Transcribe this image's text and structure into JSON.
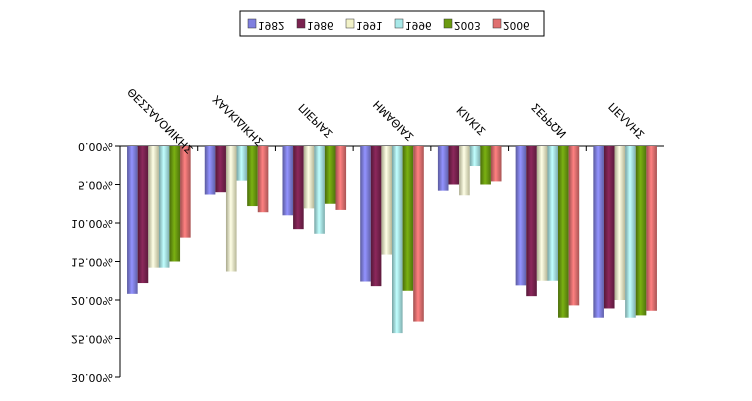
{
  "chart_data": {
    "type": "bar",
    "title": "",
    "xlabel": "",
    "ylabel": "",
    "categories": [
      "ΘΕΣΣΑΛΟΝΙΚΗΣ",
      "ΧΑΛΚΙΔΙΚΗΣ",
      "ΠΙΕΡΙΑΣ",
      "ΗΜΑΘΙΑΣ",
      "ΚΙΛΚΙΣ",
      "ΣΕΡΡΩΝ",
      "ΠΕΛΛΗΣ"
    ],
    "series": [
      {
        "name": "1982",
        "color": "#8080e0",
        "values": [
          19.2,
          6.3,
          9.0,
          17.6,
          5.8,
          18.1,
          22.3
        ]
      },
      {
        "name": "1986",
        "color": "#7a2350",
        "values": [
          17.8,
          6.0,
          10.8,
          18.2,
          5.0,
          19.5,
          21.1
        ]
      },
      {
        "name": "1991",
        "color": "#f2f2c8",
        "values": [
          15.8,
          16.3,
          8.1,
          14.1,
          6.4,
          17.5,
          20.0
        ]
      },
      {
        "name": "1996",
        "color": "#a8e8e8",
        "values": [
          15.8,
          4.5,
          11.4,
          24.3,
          2.6,
          17.5,
          22.3
        ]
      },
      {
        "name": "2003",
        "color": "#6a9a10",
        "values": [
          15.0,
          7.8,
          7.5,
          18.8,
          5.0,
          22.3,
          22.0
        ]
      },
      {
        "name": "2006",
        "color": "#e07070",
        "values": [
          11.9,
          8.6,
          8.3,
          22.8,
          4.6,
          20.7,
          21.4
        ]
      }
    ],
    "yticks": [
      "0.00%",
      "5.00%",
      "10.00%",
      "15.00%",
      "20.00%",
      "25.00%",
      "30.00%"
    ],
    "ylim": [
      0,
      30
    ],
    "grid": false,
    "legend_position": "top"
  }
}
